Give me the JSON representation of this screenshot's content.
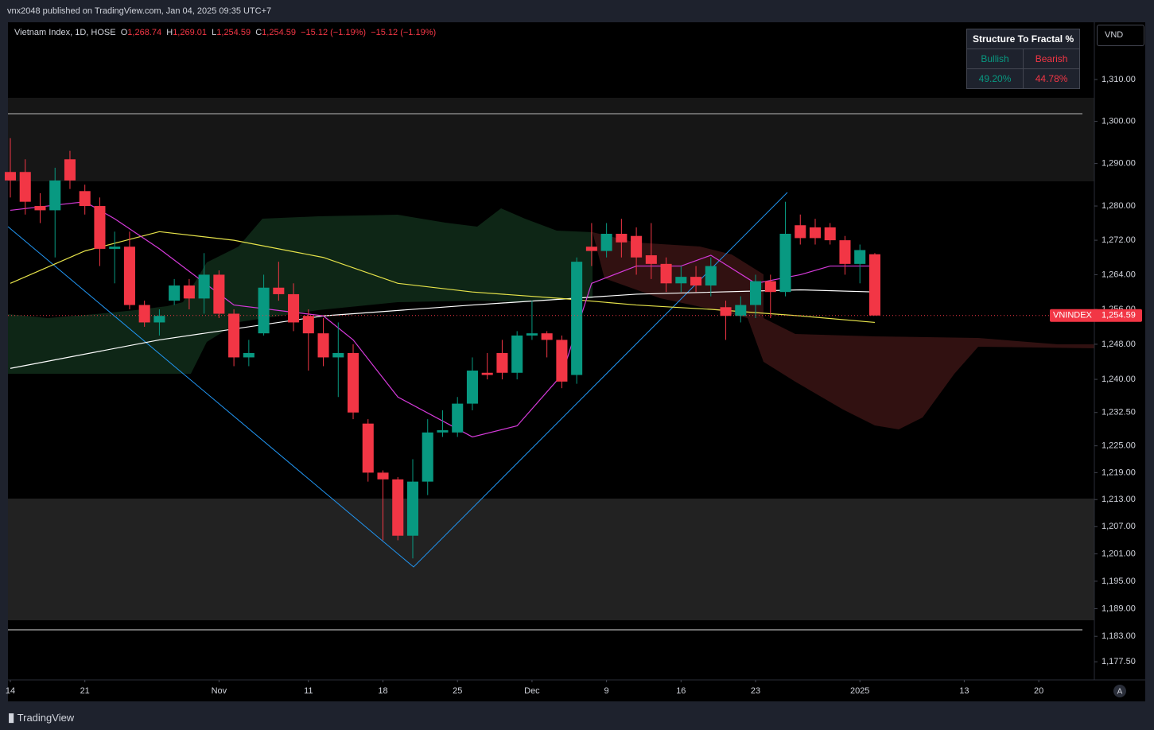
{
  "header": {
    "publisher": "vnx2048 published on TradingView.com, Jan 04, 2025 09:35 UTC+7",
    "brand": "TradingView"
  },
  "legend_header": {
    "symbol": "Vietnam Index, 1D, HOSE",
    "o": "O",
    "o_val": "1,268.74",
    "h": "H",
    "h_val": "1,269.01",
    "l": "L",
    "l_val": "1,254.59",
    "c": "C",
    "c_val": "1,254.59",
    "change": "−15.12 (−1.19%)",
    "change2": "−15.12 (−1.19%)"
  },
  "indicator_table": {
    "title": "Structure To Fractal %",
    "headers": [
      "Bullish",
      "Bearish"
    ],
    "values": [
      "49.20%",
      "44.78%"
    ]
  },
  "currency": "VND",
  "auto_button": "A",
  "chart_data": {
    "type": "candlestick",
    "log": true,
    "x": [
      0,
      1,
      2,
      3,
      4,
      5,
      6,
      7,
      8,
      9,
      10,
      11,
      12,
      13,
      14,
      15,
      16,
      17,
      18,
      19,
      20,
      21,
      22,
      23,
      24,
      25,
      26,
      27,
      28,
      29,
      30,
      31,
      32,
      33,
      34,
      35,
      36,
      37,
      38,
      39,
      40,
      41,
      42,
      43,
      44,
      45,
      46,
      47,
      48,
      49,
      50,
      51,
      52,
      53,
      54,
      55,
      56,
      57,
      58
    ],
    "open": [
      1288,
      1288,
      1280,
      1279,
      1291,
      1283.5,
      1280,
      1270,
      1270.5,
      1257,
      1253,
      1258,
      1261.5,
      1258.5,
      1264,
      1255,
      1245,
      1250.5,
      1261,
      1259.5,
      1254.5,
      1250.5,
      1245,
      1246,
      1230,
      1219,
      1217.5,
      1205,
      1217,
      1228,
      1228,
      1234.5,
      1241.5,
      1246,
      1241.5,
      1250,
      1250.5,
      1249,
      1241,
      1270.5,
      1269.5,
      1273.5,
      1273,
      1268.5,
      1266.5,
      1262,
      1263.5,
      1261.5,
      1256.5,
      1254.5,
      1257,
      1262.5,
      1260,
      1275.5,
      1275,
      1275,
      1272,
      1266.5,
      1268.74
    ],
    "high": [
      1296,
      1291,
      1283,
      1289,
      1293,
      1285,
      1282,
      1274,
      1274,
      1258,
      1256,
      1263,
      1263,
      1269,
      1265,
      1256,
      1249,
      1264,
      1267,
      1262,
      1256,
      1254,
      1253,
      1248,
      1231,
      1219.5,
      1218,
      1222,
      1231,
      1233,
      1236,
      1245,
      1246,
      1249,
      1251,
      1258,
      1251,
      1250,
      1268,
      1276,
      1276,
      1277,
      1275,
      1276,
      1268,
      1266,
      1266,
      1268,
      1258,
      1259,
      1264,
      1264,
      1281,
      1278,
      1277,
      1276,
      1273,
      1271,
      1269.01
    ],
    "low": [
      1282,
      1278,
      1276,
      1268,
      1284,
      1278,
      1266,
      1262,
      1256,
      1252,
      1250,
      1257,
      1256,
      1255,
      1254,
      1243,
      1243,
      1250,
      1258,
      1251,
      1242,
      1243,
      1236,
      1231,
      1217,
      1204,
      1204,
      1200,
      1214,
      1227,
      1227,
      1233,
      1240,
      1240,
      1240,
      1249,
      1245,
      1238,
      1239,
      1266,
      1268,
      1268,
      1264,
      1263,
      1260,
      1260,
      1260,
      1259,
      1249,
      1253,
      1254,
      1254,
      1259,
      1271,
      1271,
      1271,
      1264,
      1262,
      1254.59
    ],
    "close": [
      1286,
      1281,
      1279,
      1286,
      1286,
      1280,
      1270,
      1270.5,
      1257,
      1253,
      1254.5,
      1261.5,
      1258.5,
      1264,
      1255,
      1245,
      1246,
      1261,
      1259.5,
      1253,
      1250.5,
      1245,
      1246,
      1232.5,
      1219,
      1217.5,
      1205,
      1217,
      1228,
      1228.5,
      1234.5,
      1242,
      1241,
      1241.5,
      1250,
      1250.5,
      1249,
      1239.5,
      1267,
      1269.5,
      1273.5,
      1271.5,
      1268,
      1266.5,
      1262,
      1263.5,
      1261.5,
      1266,
      1254.5,
      1257,
      1262.5,
      1260,
      1273.5,
      1272.5,
      1272.5,
      1272,
      1266.5,
      1269.71,
      1254.59
    ],
    "up_color": "#089981",
    "down_color": "#f23645",
    "lines": [
      {
        "color": "#ffffff",
        "x": [
          0,
          10,
          21,
          31,
          42,
          53,
          58
        ],
        "values": [
          1242.5,
          1249,
          1254.5,
          1257,
          1259.5,
          1260.5,
          1260
        ]
      },
      {
        "color": "#e6e34a",
        "x": [
          0,
          5,
          10,
          15,
          21,
          26,
          31,
          37,
          42,
          47,
          53,
          58
        ],
        "values": [
          1262,
          1269.5,
          1274,
          1272,
          1268,
          1262,
          1260,
          1258.5,
          1257,
          1256,
          1254.5,
          1253
        ]
      },
      {
        "color": "#d53ad9",
        "x": [
          0,
          5,
          7,
          10,
          15,
          21,
          23,
          26,
          31,
          34,
          37,
          39,
          42,
          45,
          47,
          50,
          53,
          55,
          58
        ],
        "values": [
          1279,
          1281,
          1277,
          1270,
          1257,
          1254.5,
          1249,
          1236,
          1227,
          1229.5,
          1241,
          1262,
          1266,
          1266,
          1268.5,
          1262,
          1264,
          1266,
          1266
        ]
      }
    ],
    "last_label": "VNINDEX",
    "last_value_label": "1,254.59",
    "xlim": [
      -0.16,
      72.73
    ],
    "ylim": [
      1173.6,
      1323.8
    ],
    "yticks": [
      {
        "value": 1310,
        "label": "1,310.00"
      },
      {
        "value": 1300,
        "label": "1,300.00"
      },
      {
        "value": 1290,
        "label": "1,290.00"
      },
      {
        "value": 1280,
        "label": "1,280.00"
      },
      {
        "value": 1272,
        "label": "1,272.00"
      },
      {
        "value": 1264,
        "label": "1,264.00"
      },
      {
        "value": 1256,
        "label": "1,256.00"
      },
      {
        "value": 1248,
        "label": "1,248.00"
      },
      {
        "value": 1240,
        "label": "1,240.00"
      },
      {
        "value": 1232.5,
        "label": "1,232.50"
      },
      {
        "value": 1225,
        "label": "1,225.00"
      },
      {
        "value": 1219,
        "label": "1,219.00"
      },
      {
        "value": 1213,
        "label": "1,213.00"
      },
      {
        "value": 1207,
        "label": "1,207.00"
      },
      {
        "value": 1201,
        "label": "1,201.00"
      },
      {
        "value": 1195,
        "label": "1,195.00"
      },
      {
        "value": 1189,
        "label": "1,189.00"
      },
      {
        "value": 1183,
        "label": "1,183.00"
      },
      {
        "value": 1177.5,
        "label": "1,177.50"
      }
    ],
    "xticks": [
      {
        "value": 0,
        "label": "14"
      },
      {
        "value": 5,
        "label": "21"
      },
      {
        "value": 14,
        "label": "Nov"
      },
      {
        "value": 20,
        "label": "11"
      },
      {
        "value": 25,
        "label": "18"
      },
      {
        "value": 30,
        "label": "25"
      },
      {
        "value": 35,
        "label": "Dec"
      },
      {
        "value": 40,
        "label": "9"
      },
      {
        "value": 45,
        "label": "16"
      },
      {
        "value": 50,
        "label": "23"
      },
      {
        "value": 57,
        "label": "2025"
      },
      {
        "value": 64,
        "label": "13"
      },
      {
        "value": 69,
        "label": "20"
      }
    ]
  }
}
